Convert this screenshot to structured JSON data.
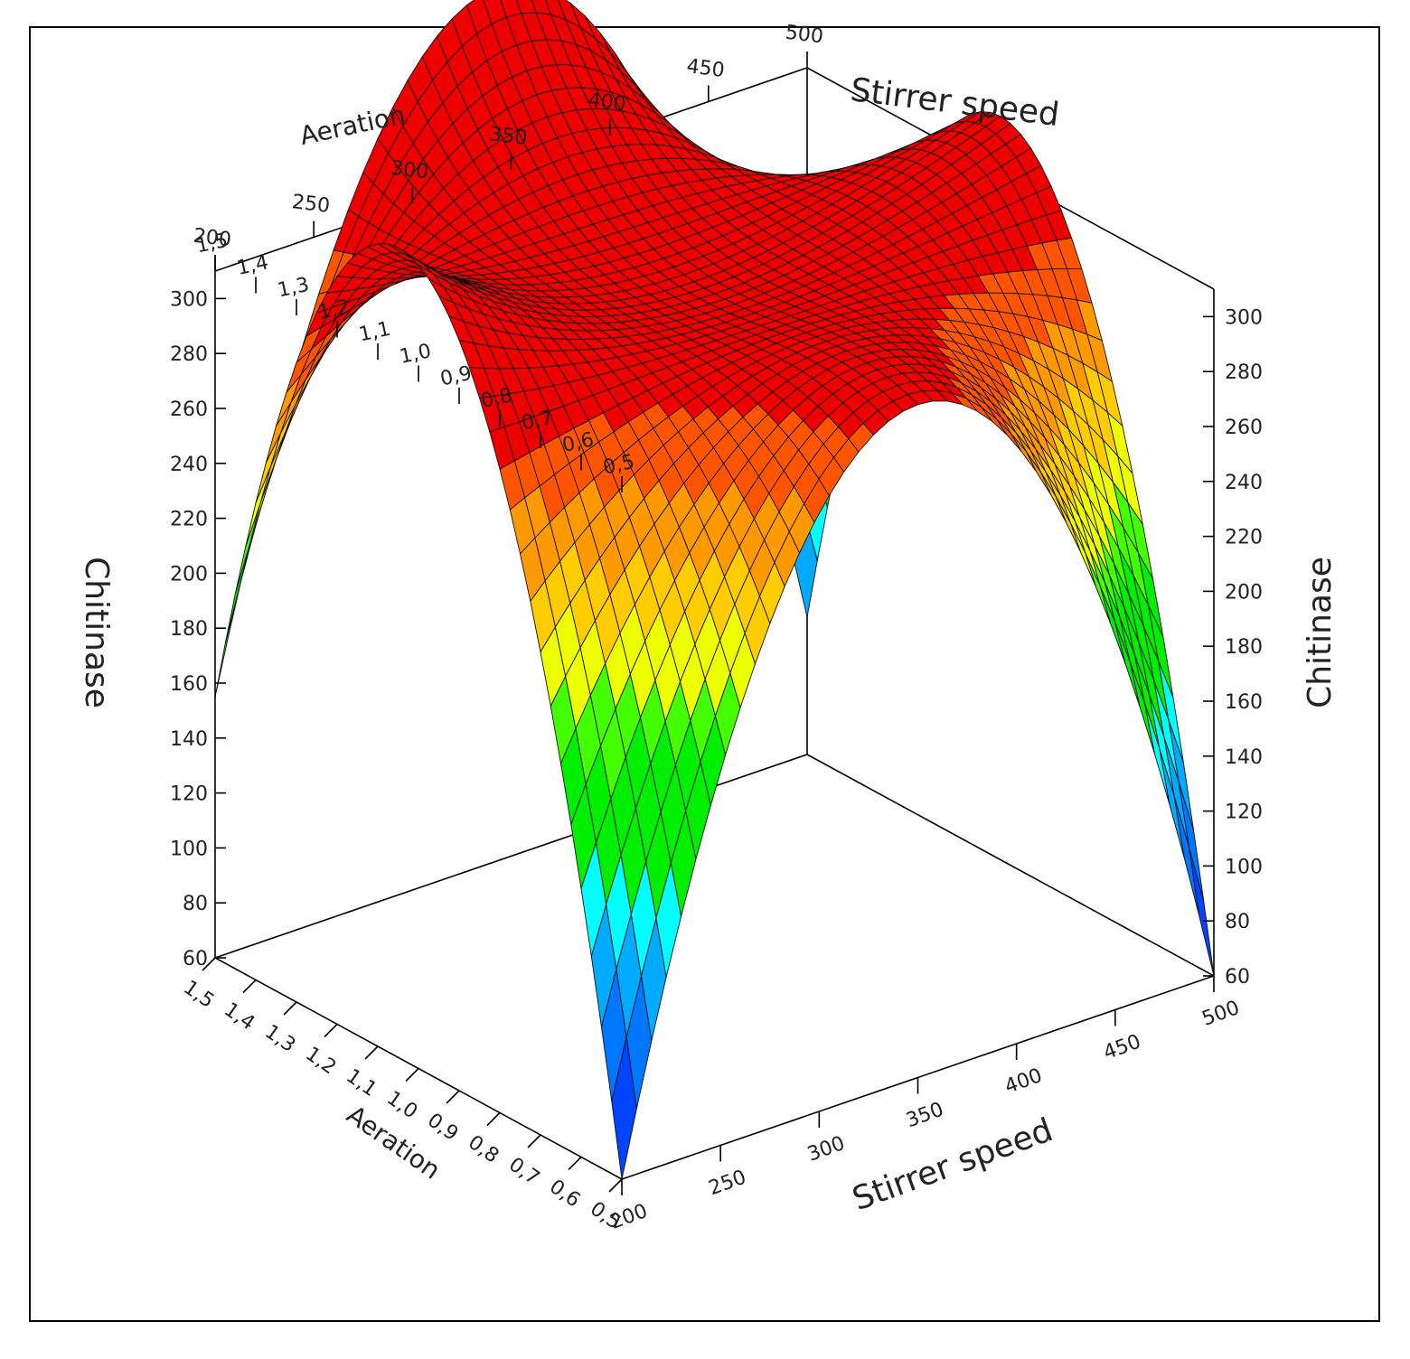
{
  "chart_data": {
    "type": "surface3d",
    "x_axis": {
      "label": "Stirrer speed",
      "range": [
        200,
        500
      ],
      "ticks": [
        "200",
        "250",
        "300",
        "350",
        "400",
        "450",
        "500"
      ]
    },
    "y_axis": {
      "label": "Aeration",
      "range": [
        0.5,
        1.5
      ],
      "ticks": [
        "0,5",
        "0,6",
        "0,7",
        "0,8",
        "0,9",
        "1,0",
        "1,1",
        "1,2",
        "1,3",
        "1,4",
        "1,5"
      ]
    },
    "z_axis": {
      "label": "Chitinase",
      "range": [
        60,
        310
      ],
      "ticks": [
        "60",
        "80",
        "100",
        "120",
        "140",
        "160",
        "180",
        "200",
        "220",
        "240",
        "260",
        "280",
        "300"
      ]
    },
    "surface": {
      "model": "quadratic",
      "peak": {
        "stirrer_speed": 350,
        "aeration": 1.0,
        "chitinase": 305
      },
      "corners": [
        {
          "stirrer_speed": 200,
          "aeration": 0.5,
          "chitinase": 60
        },
        {
          "stirrer_speed": 500,
          "aeration": 0.5,
          "chitinase": 60
        },
        {
          "stirrer_speed": 200,
          "aeration": 1.5,
          "chitinase": 155
        },
        {
          "stirrer_speed": 500,
          "aeration": 1.5,
          "chitinase": 110
        }
      ]
    },
    "colorscale": [
      {
        "from": 60,
        "to": 80,
        "color": "#0000ff"
      },
      {
        "from": 80,
        "to": 100,
        "color": "#0044ff"
      },
      {
        "from": 100,
        "to": 120,
        "color": "#0077ff"
      },
      {
        "from": 120,
        "to": 140,
        "color": "#00aaff"
      },
      {
        "from": 140,
        "to": 160,
        "color": "#00ffff"
      },
      {
        "from": 160,
        "to": 180,
        "color": "#00ee00"
      },
      {
        "from": 180,
        "to": 200,
        "color": "#00ee00"
      },
      {
        "from": 200,
        "to": 220,
        "color": "#44ff00"
      },
      {
        "from": 220,
        "to": 240,
        "color": "#eeff00"
      },
      {
        "from": 240,
        "to": 260,
        "color": "#ffcc00"
      },
      {
        "from": 260,
        "to": 280,
        "color": "#ff9900"
      },
      {
        "from": 280,
        "to": 300,
        "color": "#ff5500"
      },
      {
        "from": 300,
        "to": 320,
        "color": "#ee0000"
      }
    ],
    "grid_lines": true
  }
}
